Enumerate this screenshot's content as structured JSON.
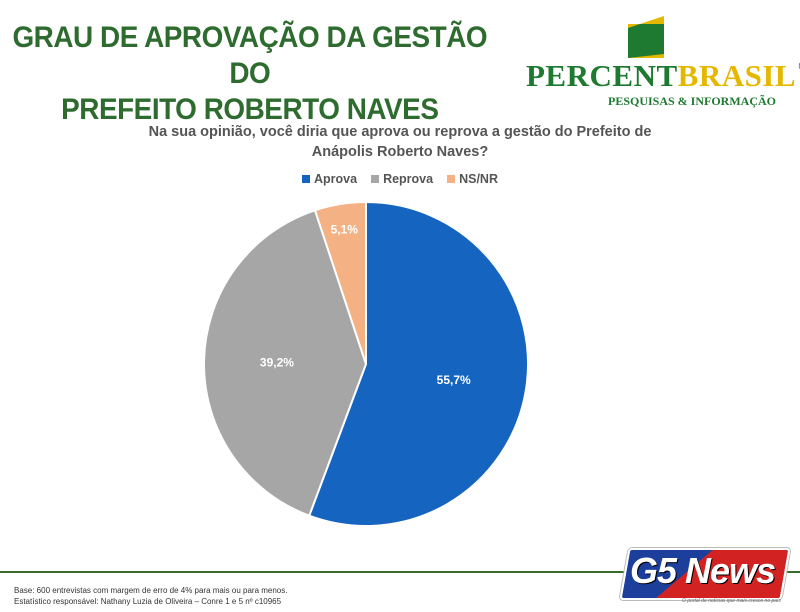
{
  "header": {
    "title_line1": "GRAU DE APROVAÇÃO DA GESTÃO DO",
    "title_line2": "PREFEITO ROBERTO NAVES"
  },
  "logo": {
    "word_part1": "PERCENT",
    "word_part2": "BRASIL",
    "registered": "®",
    "subtitle": "PESQUISAS & INFORMAÇÃO"
  },
  "question": {
    "line1": "Na sua opinião, você diria que aprova ou reprova a gestão do Prefeito de",
    "line2": "Anápolis Roberto Naves?"
  },
  "chart_data": {
    "type": "pie",
    "categories": [
      "Aprova",
      "Reprova",
      "NS/NR"
    ],
    "values": [
      55.7,
      39.2,
      5.1
    ],
    "labels": [
      "55,7%",
      "39,2%",
      "5,1%"
    ],
    "colors": [
      "#1565c0",
      "#a6a6a6",
      "#f4b183"
    ],
    "legend_position": "top"
  },
  "footer": {
    "note_line1": "Base: 600 entrevistas com margem de erro de 4% para mais ou para menos.",
    "note_line2": "Estatístico responsável: Nathany Luzia de Oliveira – Conre 1 e 5 nº c10965"
  },
  "watermark": {
    "brand": "G5 News",
    "tagline": "O portal de notícias que mais cresce no país"
  }
}
